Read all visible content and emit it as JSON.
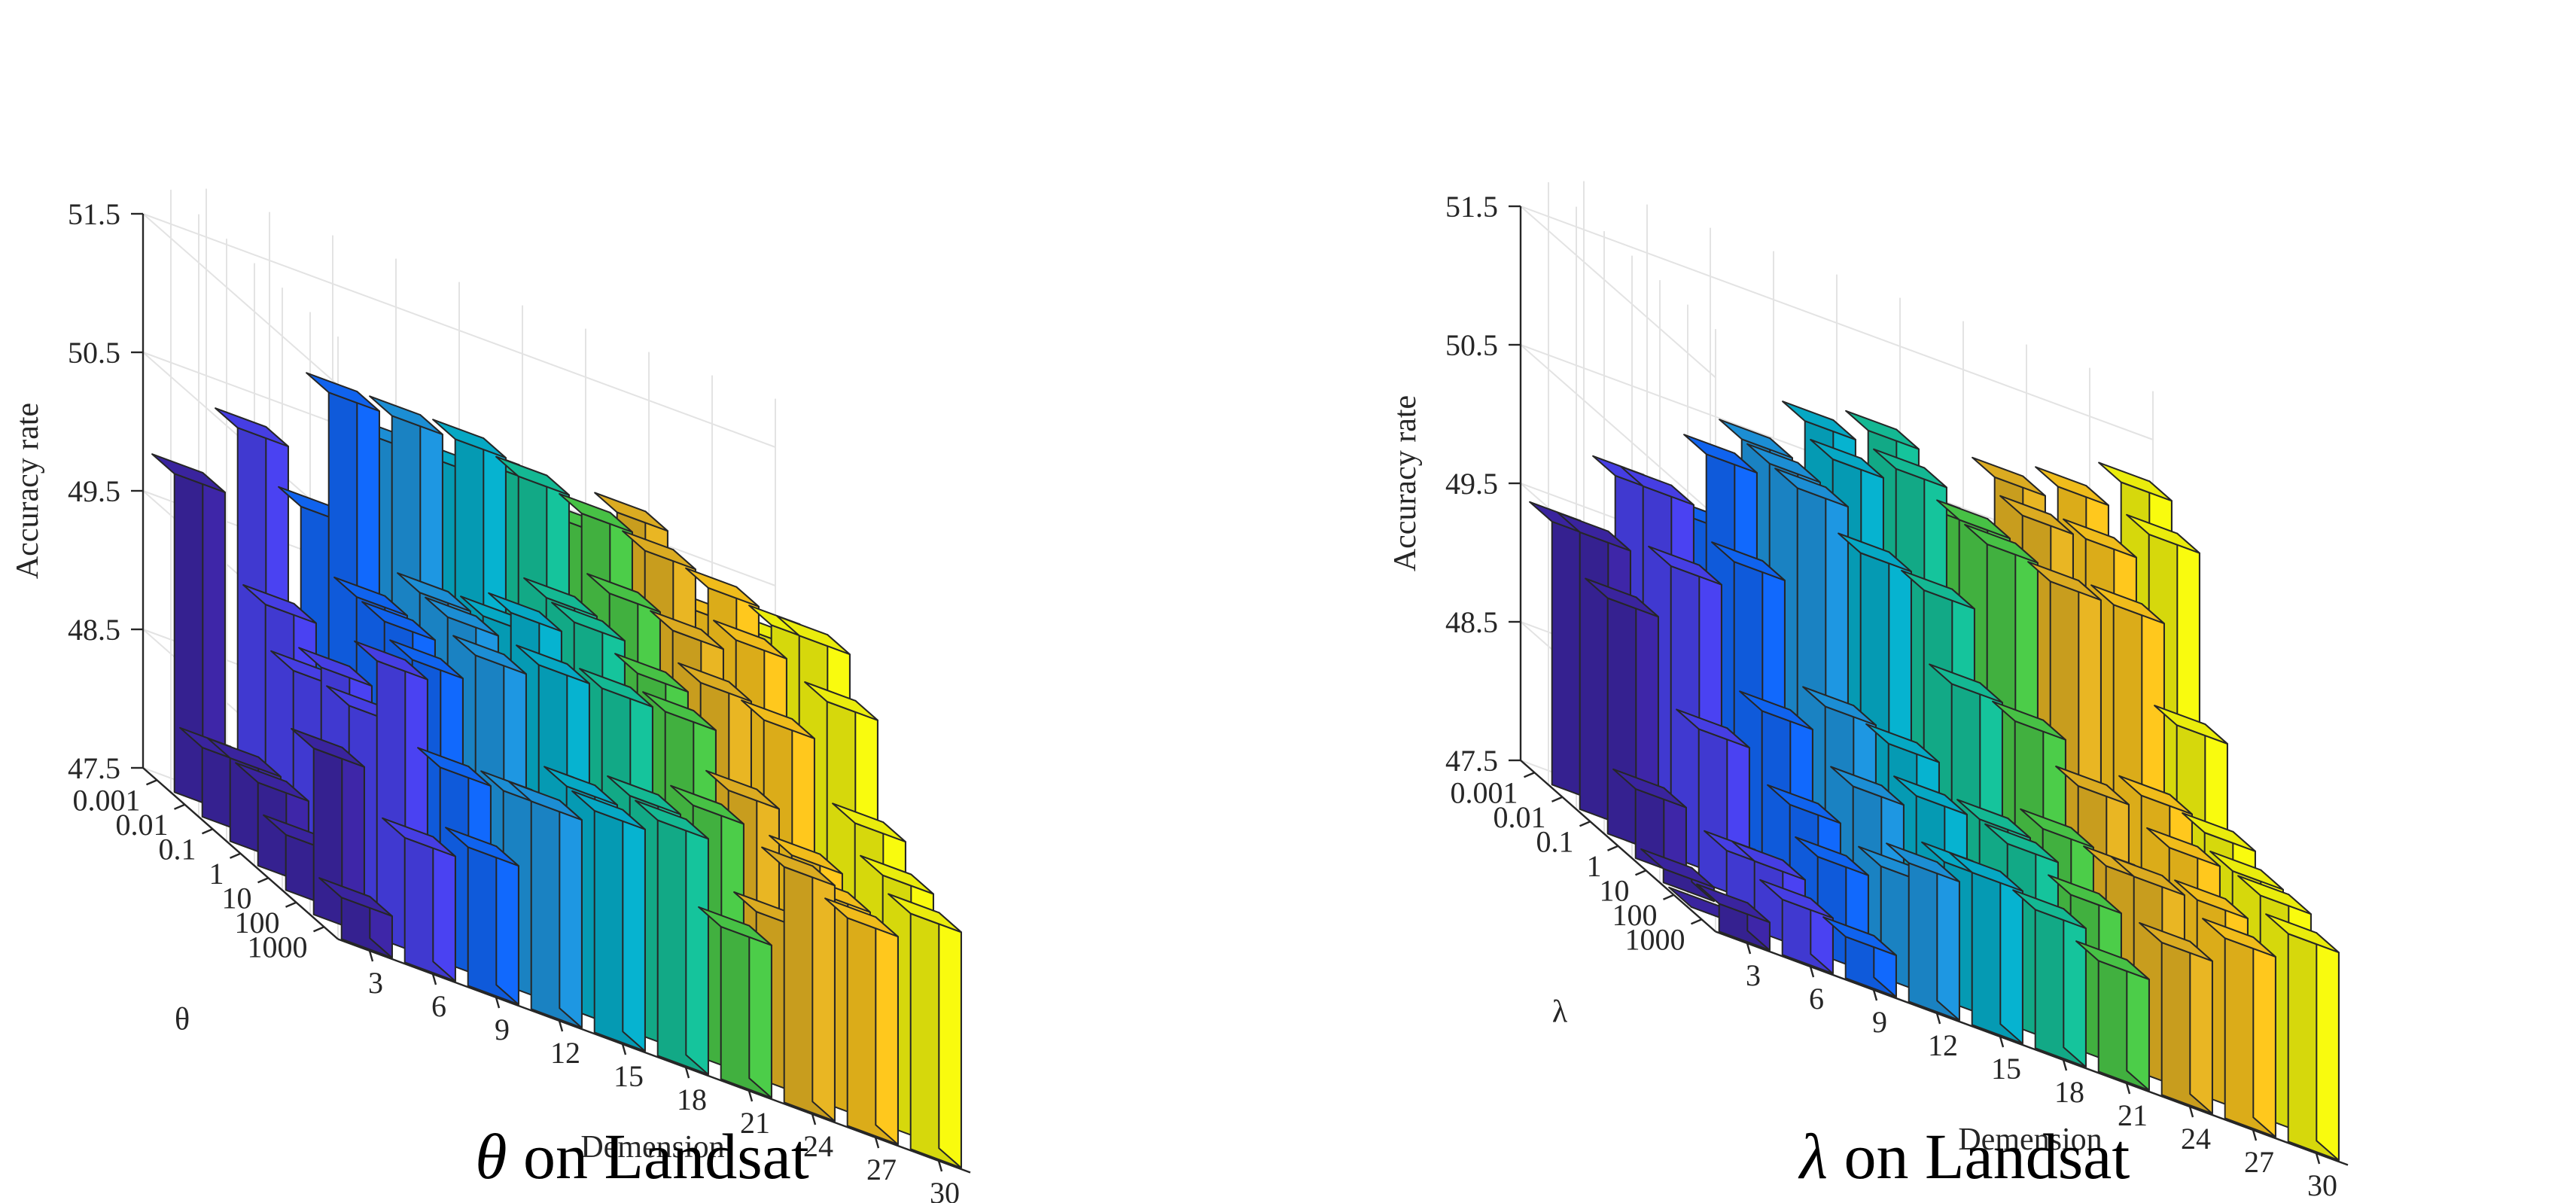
{
  "chart_data": [
    {
      "type": "bar3d",
      "title": "θ on Landsat",
      "caption_symbol": "θ",
      "caption_text": " on Landsat",
      "xlabel": "Demension",
      "ylabel": "θ",
      "zlabel": "Accuracy rate",
      "x_categories": [
        "3",
        "6",
        "9",
        "12",
        "15",
        "18",
        "21",
        "24",
        "27",
        "30"
      ],
      "y_categories": [
        "0.001",
        "0.01",
        "0.1",
        "1",
        "10",
        "100",
        "1000"
      ],
      "zlim": [
        47.5,
        51.5
      ],
      "z_ticks": [
        "47.5",
        "48.5",
        "49.5",
        "50.5",
        "51.5"
      ],
      "grid": true,
      "values": [
        [
          49.8,
          50.3,
          49.9,
          50.6,
          50.6,
          50.7,
          50.5,
          50.7,
          50.2,
          50.2
        ],
        [
          48.0,
          49.2,
          50.9,
          50.9,
          50.9,
          50.8,
          50.7,
          50.6,
          50.5,
          50.4
        ],
        [
          48.1,
          48.9,
          49.6,
          49.8,
          49.8,
          50.1,
          50.3,
          50.2,
          50.3,
          50.5
        ],
        [
          48.1,
          49.1,
          49.6,
          49.8,
          50.0,
          50.1,
          49.9,
          50.0,
          49.9,
          50.2
        ],
        [
          47.9,
          49.0,
          49.5,
          49.7,
          49.8,
          49.8,
          49.8,
          49.4,
          49.1,
          49.5
        ],
        [
          48.7,
          49.5,
          48.9,
          48.9,
          49.1,
          49.2,
          49.3,
          48.7,
          49.0,
          49.3
        ],
        [
          47.8,
          48.4,
          48.5,
          49.0,
          49.1,
          49.2,
          48.6,
          49.2,
          49.0,
          49.2
        ]
      ]
    },
    {
      "type": "bar3d",
      "title": "λ on Landsat",
      "caption_symbol": "λ",
      "caption_text": " on Landsat",
      "xlabel": "Demension",
      "ylabel": "λ",
      "zlabel": "Accuracy rate",
      "x_categories": [
        "3",
        "6",
        "9",
        "12",
        "15",
        "18",
        "21",
        "24",
        "27",
        "30"
      ],
      "y_categories": [
        "0.001",
        "0.01",
        "0.1",
        "1",
        "10",
        "100",
        "1000"
      ],
      "zlim": [
        47.5,
        51.5
      ],
      "z_ticks": [
        "47.5",
        "48.5",
        "49.5",
        "50.5",
        "51.5"
      ],
      "grid": true,
      "values": [
        [
          49.4,
          49.9,
          49.8,
          50.5,
          50.8,
          50.9,
          50.5,
          50.9,
          51.0,
          51.2
        ],
        [
          49.5,
          50.0,
          50.4,
          50.5,
          50.7,
          50.8,
          50.6,
          50.8,
          50.8,
          51.0
        ],
        [
          49.2,
          49.6,
          49.8,
          50.5,
          50.2,
          50.1,
          50.6,
          50.5,
          50.5,
          49.8
        ],
        [
          48.0,
          48.6,
          48.9,
          49.1,
          49.0,
          49.6,
          49.5,
          49.2,
          49.3,
          49.2
        ],
        [
          47.6,
          47.9,
          48.4,
          48.7,
          48.8,
          48.8,
          48.9,
          48.8,
          49.1,
          49.1
        ],
        [
          47.5,
          48.0,
          48.2,
          48.3,
          48.5,
          48.8,
          48.6,
          48.9,
          48.9,
          49.1
        ],
        [
          47.7,
          47.9,
          47.8,
          48.5,
          48.6,
          48.5,
          48.3,
          48.6,
          48.8,
          49.0
        ]
      ]
    }
  ],
  "palette": [
    "#3e26a8",
    "#4a42f2",
    "#1169fd",
    "#1e97e2",
    "#06b3d0",
    "#15c49c",
    "#4ccd49",
    "#e9b623",
    "#ffc81d",
    "#f9fb0e"
  ],
  "edge_color": "#262626",
  "grid_color": "#e3e3e3"
}
